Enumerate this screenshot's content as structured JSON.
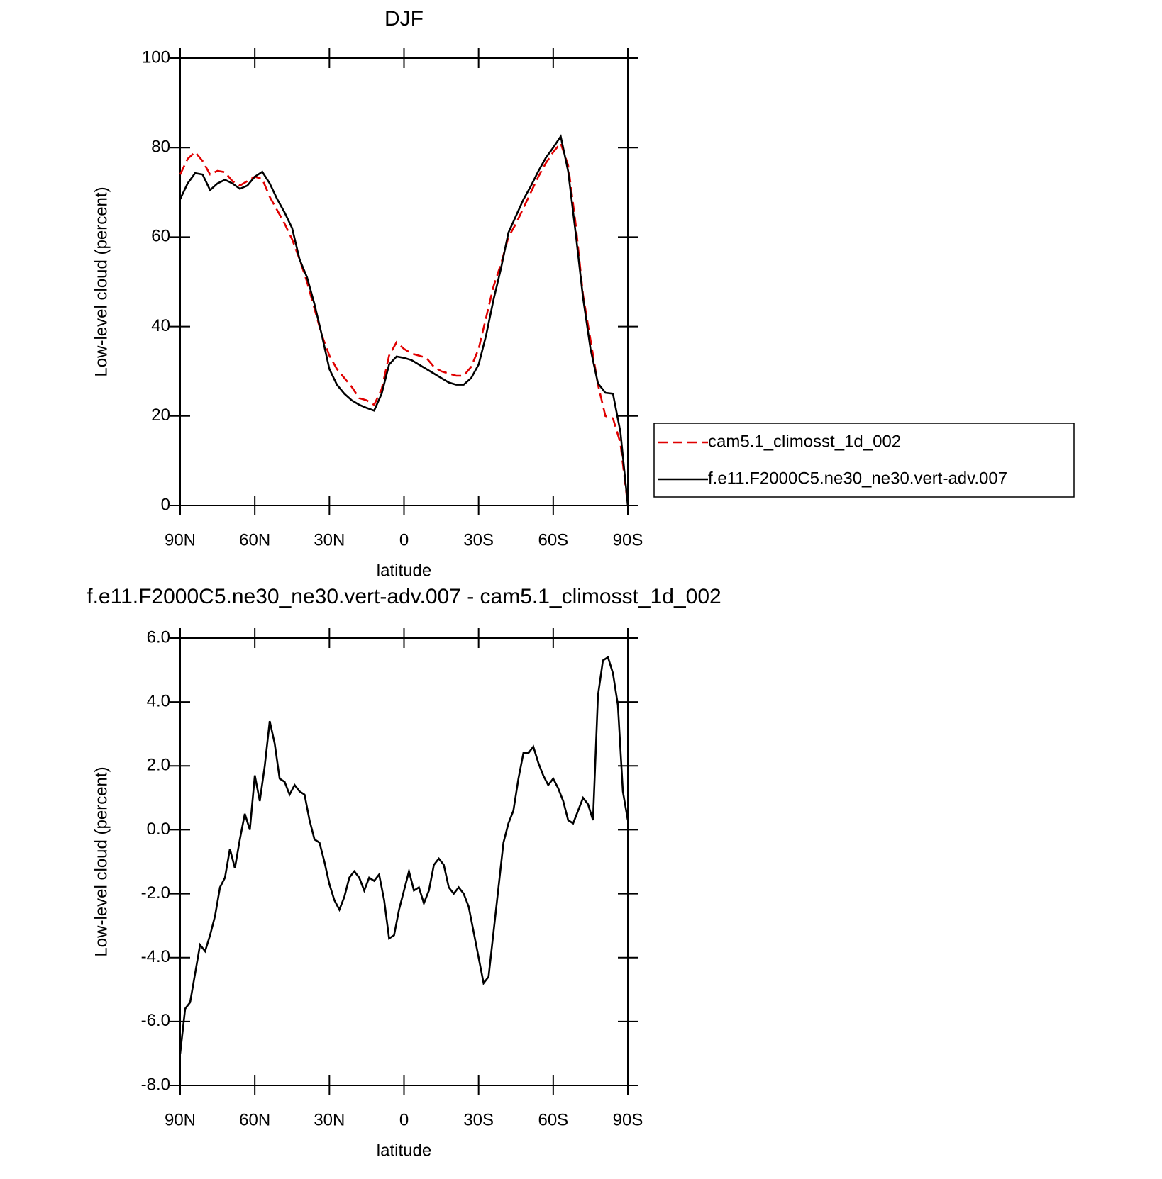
{
  "chart_data": [
    {
      "type": "line",
      "title": "DJF",
      "xlabel": "latitude",
      "ylabel": "Low-level cloud (percent)",
      "x": [
        90,
        87,
        84,
        81,
        78,
        75,
        72,
        69,
        66,
        63,
        60,
        57,
        54,
        51,
        48,
        45,
        42,
        39,
        36,
        33,
        30,
        27,
        24,
        21,
        18,
        15,
        12,
        9,
        6,
        3,
        0,
        -3,
        -6,
        -9,
        -12,
        -15,
        -18,
        -21,
        -24,
        -27,
        -30,
        -33,
        -36,
        -39,
        -42,
        -45,
        -48,
        -51,
        -54,
        -57,
        -60,
        -63,
        -66,
        -69,
        -72,
        -75,
        -78,
        -81,
        -84,
        -87,
        -90
      ],
      "xlim": [
        90,
        -90
      ],
      "xticks": [
        {
          "value": 90,
          "label": "90N"
        },
        {
          "value": 60,
          "label": "60N"
        },
        {
          "value": 30,
          "label": "30N"
        },
        0,
        {
          "value": -30,
          "label": "30S"
        },
        {
          "value": -60,
          "label": "60S"
        },
        {
          "value": -90,
          "label": "90S"
        }
      ],
      "ylim": [
        0,
        100
      ],
      "yticks": [
        0,
        20,
        40,
        60,
        80,
        100
      ],
      "legend": "right",
      "series": [
        {
          "name": "cam5.1_climosst_1d_002",
          "color": "#e00000",
          "dash": true,
          "values": [
            74,
            77.5,
            79,
            77,
            74,
            74.8,
            74.5,
            72.5,
            71.5,
            72.5,
            73.5,
            73,
            69,
            66,
            63,
            59.5,
            55,
            50,
            44,
            38,
            33.5,
            30.5,
            28.5,
            26.5,
            24,
            23.5,
            22.5,
            26,
            33.5,
            36.5,
            35,
            34,
            33.5,
            33,
            31,
            30,
            29.5,
            29,
            29,
            31,
            35,
            42,
            49,
            54,
            60,
            63,
            66.5,
            70,
            73.5,
            76.5,
            79,
            81,
            76,
            63,
            47,
            37,
            27,
            20,
            19.5,
            14,
            0
          ]
        },
        {
          "name": "f.e11.F2000C5.ne30_ne30.vert-adv.007",
          "color": "#000000",
          "dash": false,
          "values": [
            68.5,
            72,
            74.3,
            74,
            70.5,
            72,
            72.8,
            72,
            70.8,
            71.5,
            73.5,
            74.6,
            72,
            68.5,
            65.5,
            62,
            55,
            51,
            45,
            38,
            30.5,
            27,
            25,
            23.5,
            22.5,
            21.8,
            21.2,
            25,
            31.5,
            33.3,
            33,
            32.5,
            31.5,
            30.5,
            29.5,
            28.5,
            27.5,
            27,
            27,
            28.5,
            31.5,
            38,
            46,
            53,
            61,
            64.7,
            68.4,
            71.4,
            74.7,
            77.7,
            80,
            82.5,
            74.7,
            61,
            46.4,
            35,
            27.3,
            25.2,
            25,
            16.5,
            0
          ]
        }
      ]
    },
    {
      "type": "line",
      "title": "f.e11.F2000C5.ne30_ne30.vert-adv.007 - cam5.1_climosst_1d_002",
      "xlabel": "latitude",
      "ylabel": "Low-level cloud (percent)",
      "x": [
        90,
        88,
        86,
        84,
        82,
        80,
        78,
        76,
        74,
        72,
        70,
        68,
        66,
        64,
        62,
        60,
        58,
        56,
        54,
        52,
        50,
        48,
        46,
        44,
        42,
        40,
        38,
        36,
        34,
        32,
        30,
        28,
        26,
        24,
        22,
        20,
        18,
        16,
        14,
        12,
        10,
        8,
        6,
        4,
        2,
        0,
        -2,
        -4,
        -6,
        -8,
        -10,
        -12,
        -14,
        -16,
        -18,
        -20,
        -22,
        -24,
        -26,
        -28,
        -30,
        -32,
        -34,
        -36,
        -38,
        -40,
        -42,
        -44,
        -46,
        -48,
        -50,
        -52,
        -54,
        -56,
        -58,
        -60,
        -62,
        -64,
        -66,
        -68,
        -70,
        -72,
        -74,
        -76,
        -78,
        -80,
        -82,
        -84,
        -86,
        -88,
        -90
      ],
      "xlim": [
        90,
        -90
      ],
      "xticks": [
        {
          "value": 90,
          "label": "90N"
        },
        {
          "value": 60,
          "label": "60N"
        },
        {
          "value": 30,
          "label": "30N"
        },
        0,
        {
          "value": -30,
          "label": "30S"
        },
        {
          "value": -60,
          "label": "60S"
        },
        {
          "value": -90,
          "label": "90S"
        }
      ],
      "ylim": [
        -8,
        6
      ],
      "yticks": [
        {
          "value": -8,
          "label": "-8.0"
        },
        {
          "value": -6,
          "label": "-6.0"
        },
        {
          "value": -4,
          "label": "-4.0"
        },
        {
          "value": -2,
          "label": "-2.0"
        },
        {
          "value": 0,
          "label": "0.0"
        },
        {
          "value": 2,
          "label": "2.0"
        },
        {
          "value": 4,
          "label": "4.0"
        },
        {
          "value": 6,
          "label": "6.0"
        }
      ],
      "color": "#000000",
      "values": [
        -7,
        -5.6,
        -5.4,
        -4.5,
        -3.6,
        -3.8,
        -3.3,
        -2.7,
        -1.8,
        -1.5,
        -0.6,
        -1.2,
        -0.3,
        0.5,
        0,
        1.7,
        0.9,
        2,
        3.4,
        2.7,
        1.6,
        1.5,
        1.1,
        1.4,
        1.2,
        1.1,
        0.3,
        -0.3,
        -0.4,
        -1,
        -1.7,
        -2.2,
        -2.5,
        -2.1,
        -1.5,
        -1.3,
        -1.5,
        -1.9,
        -1.5,
        -1.6,
        -1.4,
        -2.2,
        -3.4,
        -3.3,
        -2.5,
        -1.9,
        -1.3,
        -1.9,
        -1.8,
        -2.3,
        -1.9,
        -1.1,
        -0.9,
        -1.1,
        -1.8,
        -2,
        -1.8,
        -2,
        -2.4,
        -3.2,
        -4,
        -4.8,
        -4.6,
        -3.2,
        -1.8,
        -0.4,
        0.2,
        0.6,
        1.6,
        2.4,
        2.4,
        2.6,
        2.1,
        1.7,
        1.4,
        1.6,
        1.3,
        0.9,
        0.3,
        0.2,
        0.6,
        1,
        0.8,
        0.3,
        4.2,
        5.3,
        5.4,
        4.9,
        3.9,
        1.2,
        0.3
      ]
    }
  ]
}
